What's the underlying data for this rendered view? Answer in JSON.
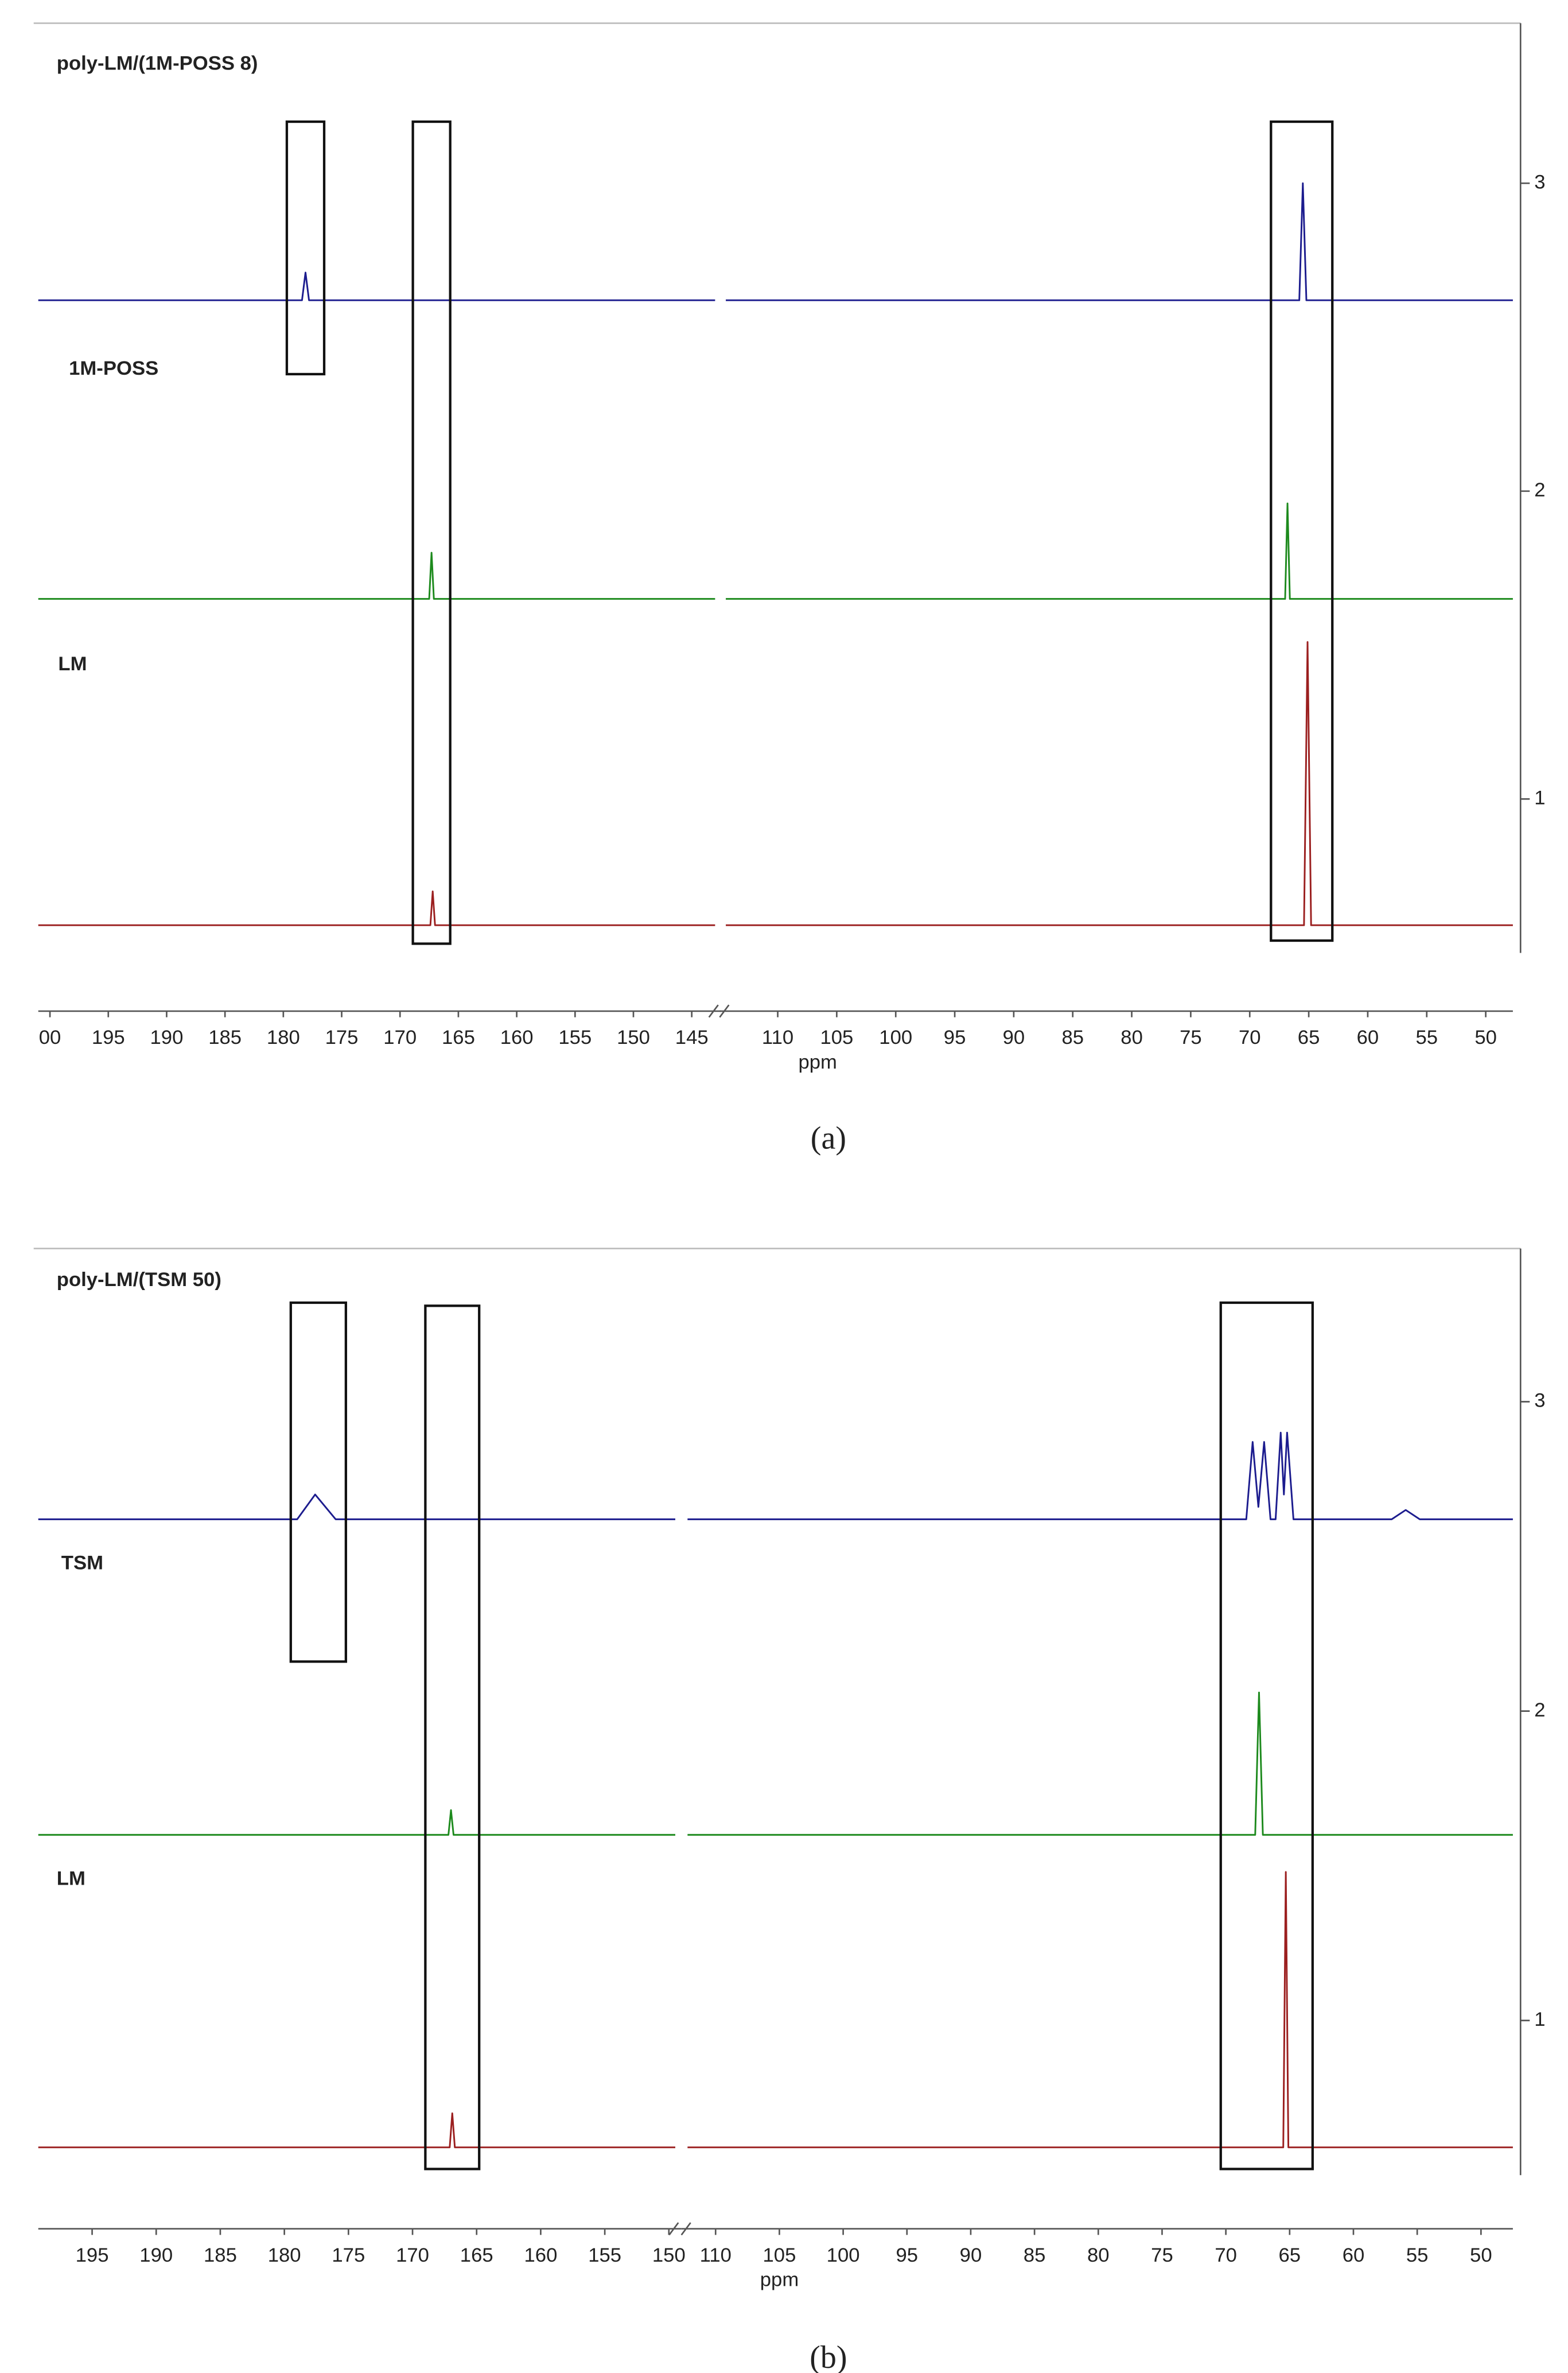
{
  "chart_data": [
    {
      "type": "line",
      "caption": "(a)",
      "xlabel": "ppm",
      "xlim": [
        201,
        47.7
      ],
      "x_break": [
        143,
        114.4
      ],
      "xticks": [
        {
          "value": 200,
          "label": "00"
        },
        195,
        190,
        185,
        180,
        175,
        170,
        165,
        160,
        155,
        150,
        145,
        110,
        105,
        100,
        95,
        90,
        85,
        80,
        75,
        70,
        65,
        60,
        55,
        50
      ],
      "ylim": [
        0.5,
        3.5
      ],
      "yticks": [
        1,
        2,
        3
      ],
      "series": [
        {
          "name": "poly-LM/(1M-POSS 8)",
          "color": "#1c1c8e",
          "x": [
            201,
            178.4,
            178.1,
            177.8,
            143,
            null,
            114.4,
            65.8,
            65.5,
            65.2,
            47.7
          ],
          "values": [
            2.62,
            2.62,
            2.71,
            2.62,
            2.62,
            null,
            2.62,
            2.62,
            3.0,
            2.62,
            2.62
          ]
        },
        {
          "name": "1M-POSS",
          "color": "#1d8a1d",
          "x": [
            201,
            167.5,
            167.3,
            167.1,
            143,
            null,
            114.4,
            67.0,
            66.8,
            66.6,
            47.7
          ],
          "values": [
            1.65,
            1.65,
            1.8,
            1.65,
            1.65,
            null,
            1.65,
            1.65,
            1.96,
            1.65,
            1.65
          ]
        },
        {
          "name": "LM",
          "color": "#9b1f1f",
          "x": [
            201,
            167.4,
            167.2,
            167.0,
            143,
            null,
            114.4,
            65.4,
            65.1,
            64.8,
            47.7
          ],
          "values": [
            0.59,
            0.59,
            0.7,
            0.59,
            0.59,
            null,
            0.59,
            0.59,
            1.51,
            0.59,
            0.59
          ]
        }
      ],
      "boxes": [
        {
          "x": [
            179.7,
            176.5
          ],
          "y": [
            3.2,
            2.38
          ]
        },
        {
          "x": [
            168.9,
            165.7
          ],
          "y": [
            3.2,
            0.53
          ]
        },
        {
          "x": [
            68.2,
            63.0
          ],
          "y": [
            3.2,
            0.54
          ]
        }
      ]
    },
    {
      "type": "line",
      "caption": "(b)",
      "xlabel": "ppm",
      "xlim": [
        199.2,
        47.5
      ],
      "x_break": [
        149.5,
        112.2
      ],
      "xticks": [
        195,
        190,
        185,
        180,
        175,
        170,
        165,
        160,
        155,
        150,
        110,
        105,
        100,
        95,
        90,
        85,
        80,
        75,
        70,
        65,
        60,
        55,
        50
      ],
      "ylim": [
        0.5,
        3.5
      ],
      "yticks": [
        1,
        2,
        3
      ],
      "series": [
        {
          "name": "poly-LM/(TSM 50)",
          "color": "#1c1c8e",
          "x": [
            199.2,
            179,
            177.6,
            176,
            149.5,
            null,
            112.2,
            68.4,
            67.9,
            67.45,
            67.0,
            66.5,
            66.1,
            65.7,
            65.45,
            65.2,
            64.7,
            57,
            55.9,
            54.8,
            47.5
          ],
          "values": [
            2.62,
            2.62,
            2.7,
            2.62,
            2.62,
            null,
            2.62,
            2.62,
            2.87,
            2.66,
            2.87,
            2.62,
            2.62,
            2.9,
            2.7,
            2.9,
            2.62,
            2.62,
            2.65,
            2.62,
            2.62
          ]
        },
        {
          "name": "TSM",
          "color": "#1d8a1d",
          "x": [
            199.2,
            167.2,
            167.0,
            166.8,
            149.5,
            null,
            112.2,
            67.7,
            67.4,
            67.1,
            47.5
          ],
          "values": [
            1.6,
            1.6,
            1.68,
            1.6,
            1.6,
            null,
            1.6,
            1.6,
            2.06,
            1.6,
            1.6
          ]
        },
        {
          "name": "LM",
          "color": "#9b1f1f",
          "x": [
            199.2,
            167.1,
            166.9,
            166.7,
            149.5,
            null,
            112.2,
            65.5,
            65.3,
            65.1,
            47.5
          ],
          "values": [
            0.59,
            0.59,
            0.7,
            0.59,
            0.59,
            null,
            0.59,
            0.59,
            1.48,
            0.59,
            0.59
          ]
        }
      ],
      "boxes": [
        {
          "x": [
            179.5,
            175.2
          ],
          "y": [
            3.32,
            2.16
          ]
        },
        {
          "x": [
            169.0,
            164.8
          ],
          "y": [
            3.31,
            0.52
          ]
        },
        {
          "x": [
            70.4,
            63.2
          ],
          "y": [
            3.32,
            0.52
          ]
        }
      ]
    }
  ]
}
